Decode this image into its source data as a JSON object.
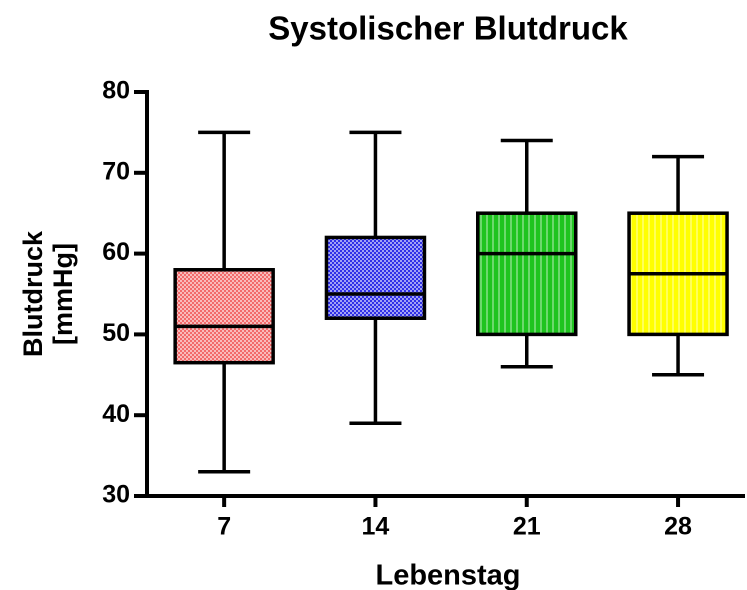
{
  "chart_data": {
    "type": "box",
    "title": "Systolischer Blutdruck",
    "x_label": "Lebenstag",
    "y_label": [
      "Blutdruck",
      "[mmHg]"
    ],
    "categories": [
      "7",
      "14",
      "21",
      "28"
    ],
    "boxes": [
      {
        "min": 33,
        "q1": 46.5,
        "median": 51,
        "q3": 58,
        "max": 75,
        "color": "#f26b6b",
        "pattern": "checker"
      },
      {
        "min": 39,
        "q1": 52,
        "median": 55,
        "q3": 62,
        "max": 75,
        "color": "#3030e8",
        "pattern": "checker"
      },
      {
        "min": 46,
        "q1": 50,
        "median": 60,
        "q3": 65,
        "max": 74,
        "color": "#1fc41f",
        "pattern": "stripes"
      },
      {
        "min": 45,
        "q1": 50,
        "median": 57.5,
        "q3": 65,
        "max": 72,
        "color": "#ffff00",
        "pattern": "stripes"
      }
    ],
    "ylim": [
      30,
      80
    ],
    "yticks": [
      30,
      40,
      50,
      60,
      70,
      80
    ]
  }
}
